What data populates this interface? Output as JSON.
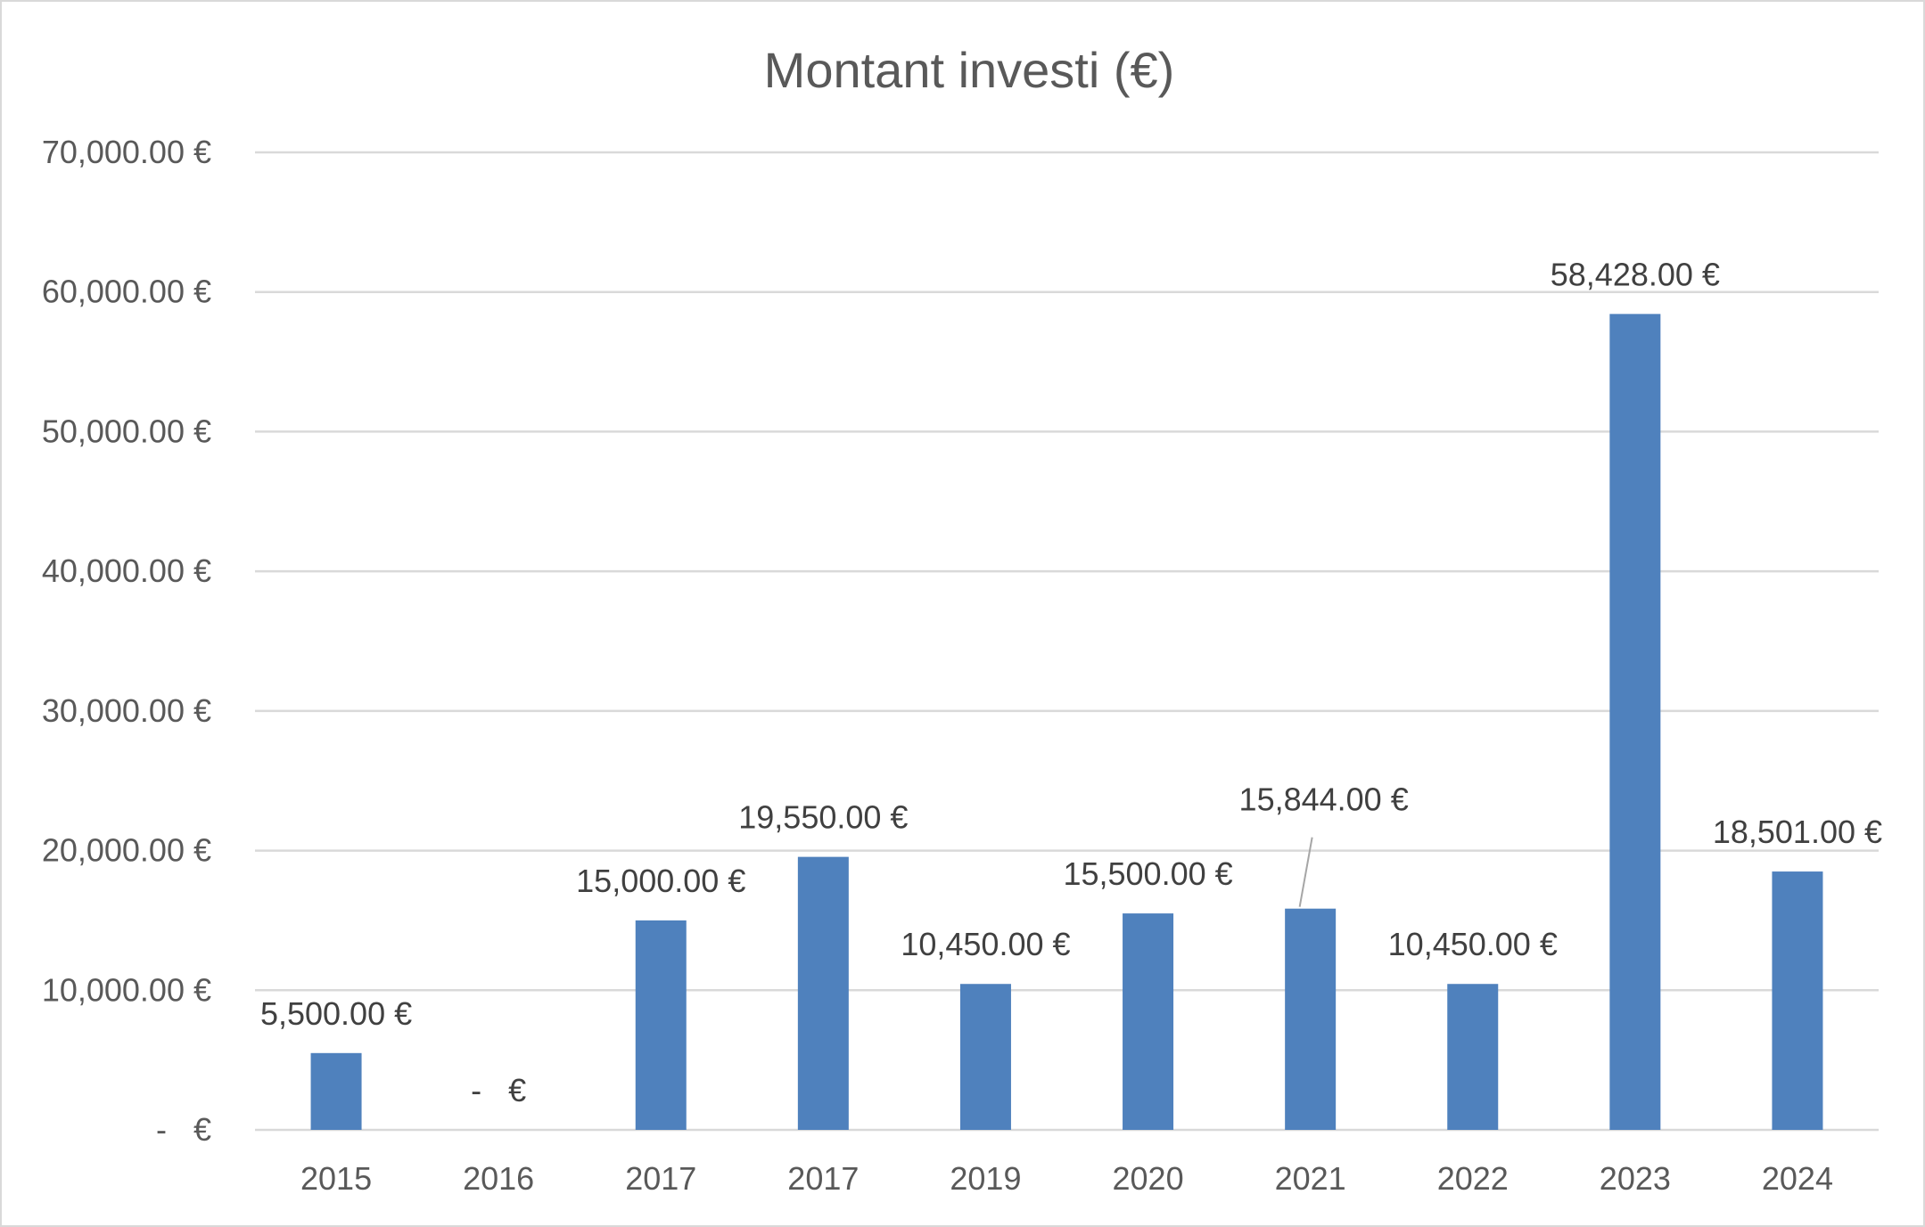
{
  "chart_data": {
    "type": "bar",
    "title": "Montant investi (€)",
    "xlabel": "",
    "ylabel": "",
    "ylim": [
      0,
      70000
    ],
    "grid": true,
    "legend": "none",
    "categories": [
      "2015",
      "2016",
      "2017",
      "2017",
      "2019",
      "2020",
      "2021",
      "2022",
      "2023",
      "2024"
    ],
    "values": [
      5500,
      0,
      15000,
      19550,
      10450,
      15500,
      15844,
      10450,
      58428,
      18501
    ],
    "data_labels": [
      "5,500.00 €",
      "-   €",
      "15,000.00 €",
      "19,550.00 €",
      "10,450.00 €",
      "15,500.00 €",
      "15,844.00 €",
      "10,450.00 €",
      "58,428.00 €",
      "18,501.00 €"
    ],
    "y_ticks": [
      {
        "value": 0,
        "label": "-   €"
      },
      {
        "value": 10000,
        "label": "10,000.00 €"
      },
      {
        "value": 20000,
        "label": "20,000.00 €"
      },
      {
        "value": 30000,
        "label": "30,000.00 €"
      },
      {
        "value": 40000,
        "label": "40,000.00 €"
      },
      {
        "value": 50000,
        "label": "50,000.00 €"
      },
      {
        "value": 60000,
        "label": "60,000.00 €"
      },
      {
        "value": 70000,
        "label": "70,000.00 €"
      }
    ],
    "colors": {
      "bar": "#4f81bd",
      "grid": "#d9d9d9",
      "text": "#595959"
    }
  }
}
